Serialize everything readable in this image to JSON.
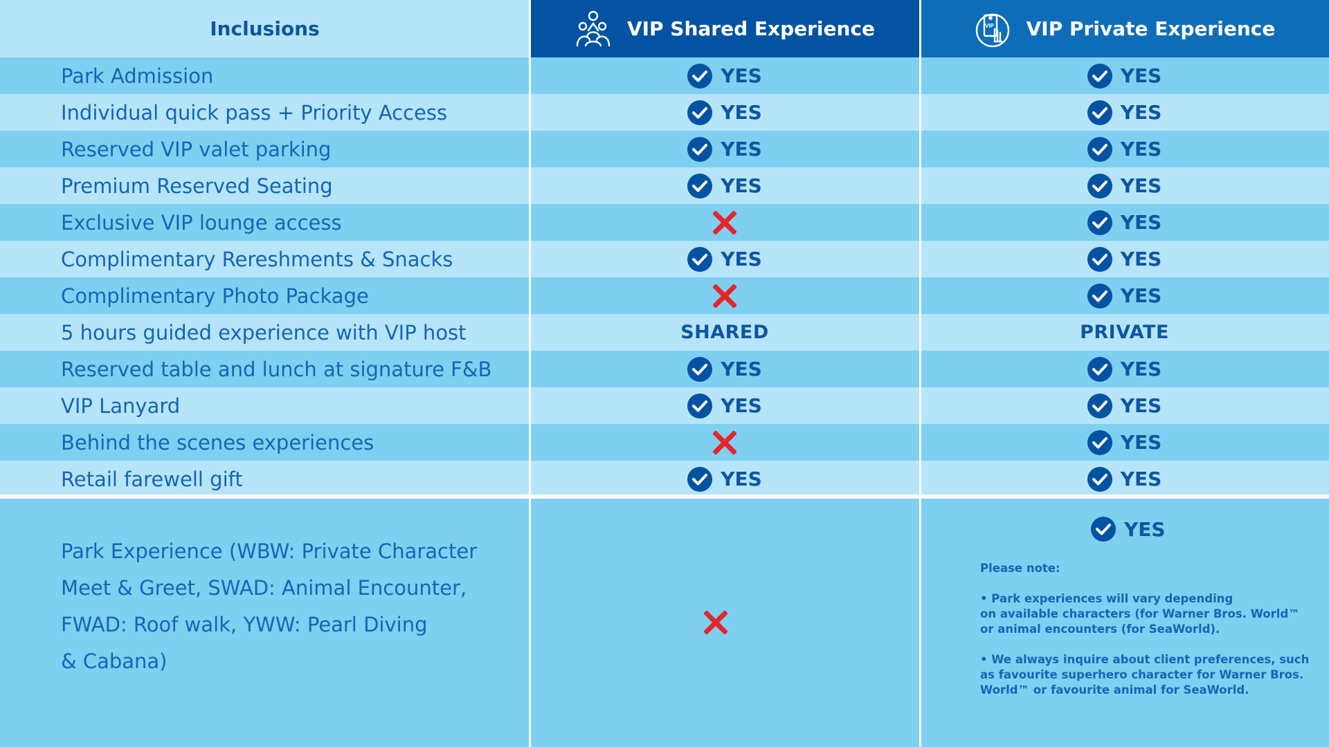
{
  "header": {
    "inclusions": "Inclusions",
    "shared": "VIP Shared Experience",
    "private": "VIP Private Experience",
    "shared_icon": "family-icon",
    "private_icon": "vip-pass-icon"
  },
  "rows": [
    {
      "label": "Park Admission",
      "shared": "YES",
      "private": "YES"
    },
    {
      "label": "Individual quick pass + Priority Access",
      "shared": "YES",
      "private": "YES"
    },
    {
      "label": "Reserved VIP valet parking",
      "shared": "YES",
      "private": "YES"
    },
    {
      "label": "Premium Reserved Seating",
      "shared": "YES",
      "private": "YES"
    },
    {
      "label": "Exclusive VIP lounge access",
      "shared": "NO",
      "private": "YES"
    },
    {
      "label": "Complimentary Rereshments & Snacks",
      "shared": "YES",
      "private": "YES"
    },
    {
      "label": "Complimentary Photo Package",
      "shared": "NO",
      "private": "YES"
    },
    {
      "label": "5 hours guided experience with VIP host",
      "shared": "SHARED",
      "private": "PRIVATE"
    },
    {
      "label": "Reserved table and lunch at signature F&B",
      "shared": "YES",
      "private": "YES"
    },
    {
      "label": "VIP Lanyard",
      "shared": "YES",
      "private": "YES"
    },
    {
      "label": "Behind the scenes experiences",
      "shared": "NO",
      "private": "YES"
    },
    {
      "label": "Retail farewell gift",
      "shared": "YES",
      "private": "YES"
    }
  ],
  "park_experience": {
    "line1": "Park Experience (WBW: Private Character",
    "line2": "Meet & Greet,  SWAD: Animal Encounter,",
    "line3": "FWAD: Roof walk, YWW: Pearl Diving",
    "line4": "& Cabana)",
    "shared": "NO",
    "private": "YES"
  },
  "note": {
    "title": "Please note:",
    "bullet1_l1": "• Park experiences will vary depending",
    "bullet1_l2": "on available characters (for Warner Bros. World™",
    "bullet1_l3": " or animal encounters (for SeaWorld).",
    "bullet2_l1": "• We always inquire about client preferences, such",
    "bullet2_l2": "as favourite superhero character for Warner Bros.",
    "bullet2_l3": "World™ or favourite animal for SeaWorld."
  },
  "colors": {
    "header_dark": "#0453a3",
    "header_mid": "#0f6db8",
    "row_dark": "#7fcff0",
    "row_light": "#b6e4f8",
    "text": "#1565b8",
    "cross": "#e5252a"
  }
}
